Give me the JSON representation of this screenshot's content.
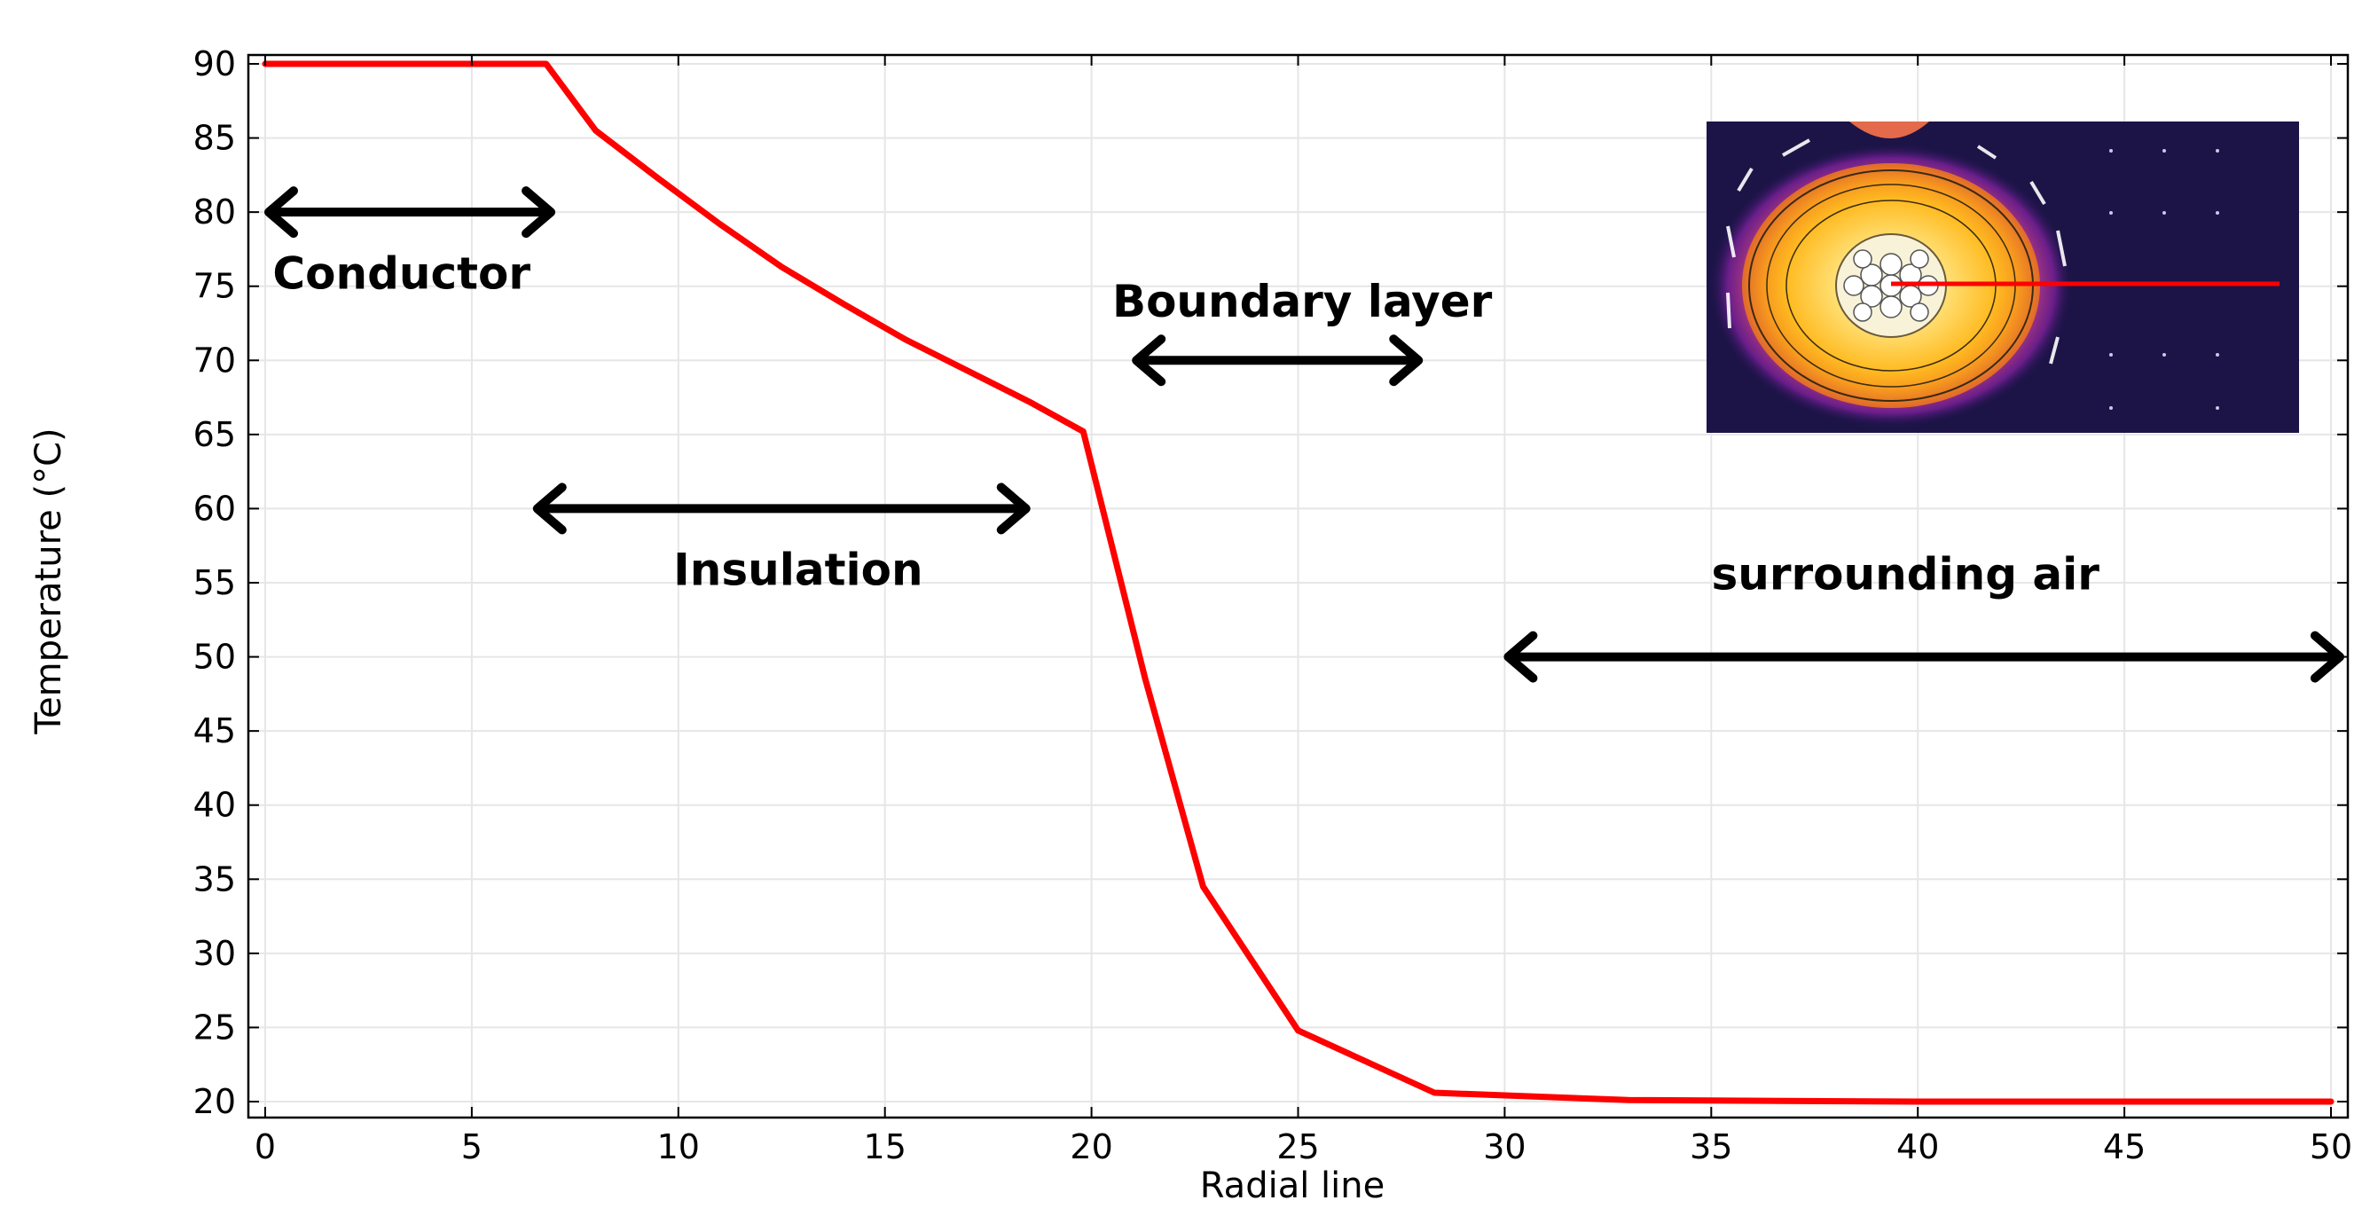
{
  "chart_data": {
    "type": "line",
    "title": "",
    "xlabel": "Radial line",
    "ylabel": "Temperature (°C)",
    "xlim": [
      0,
      50
    ],
    "ylim": [
      20,
      90
    ],
    "grid": true,
    "x_ticks": [
      0,
      5,
      10,
      15,
      20,
      25,
      30,
      35,
      40,
      45,
      50
    ],
    "y_ticks": [
      20,
      25,
      30,
      35,
      40,
      45,
      50,
      55,
      60,
      65,
      70,
      75,
      80,
      85,
      90
    ],
    "series": [
      {
        "name": "Temperature",
        "color": "#ff0000",
        "x": [
          0,
          6.8,
          8.0,
          9.5,
          11,
          12.5,
          14,
          15.5,
          17,
          18.5,
          19.8,
          21.3,
          22.7,
          25.0,
          28.3,
          33,
          40,
          50
        ],
        "y": [
          90,
          90,
          85.5,
          82.3,
          79.2,
          76.3,
          73.8,
          71.4,
          69.3,
          67.2,
          65.2,
          48.5,
          34.5,
          24.8,
          20.6,
          20.1,
          20,
          20
        ]
      }
    ],
    "annotations": [
      {
        "id": "conductor",
        "label": "Conductor",
        "arrow_x": [
          0,
          7
        ],
        "arrow_y": 80,
        "label_x": 3.3,
        "label_y": 75.8
      },
      {
        "id": "insulation",
        "label": "Insulation",
        "arrow_x": [
          6.5,
          18.5
        ],
        "arrow_y": 60,
        "label_x": 12.9,
        "label_y": 55.8
      },
      {
        "id": "boundary-layer",
        "label": "Boundary layer",
        "arrow_x": [
          21,
          28
        ],
        "arrow_y": 70,
        "label_x": 25.1,
        "label_y": 73.9
      },
      {
        "id": "surrounding-air",
        "label": "surrounding air",
        "arrow_x": [
          30,
          50.3
        ],
        "arrow_y": 50,
        "label_x": 39.7,
        "label_y": 55.5
      }
    ],
    "inset": {
      "description_icon": "cable-temperature-field-icon",
      "radial_line_color": "#ff0000"
    }
  }
}
